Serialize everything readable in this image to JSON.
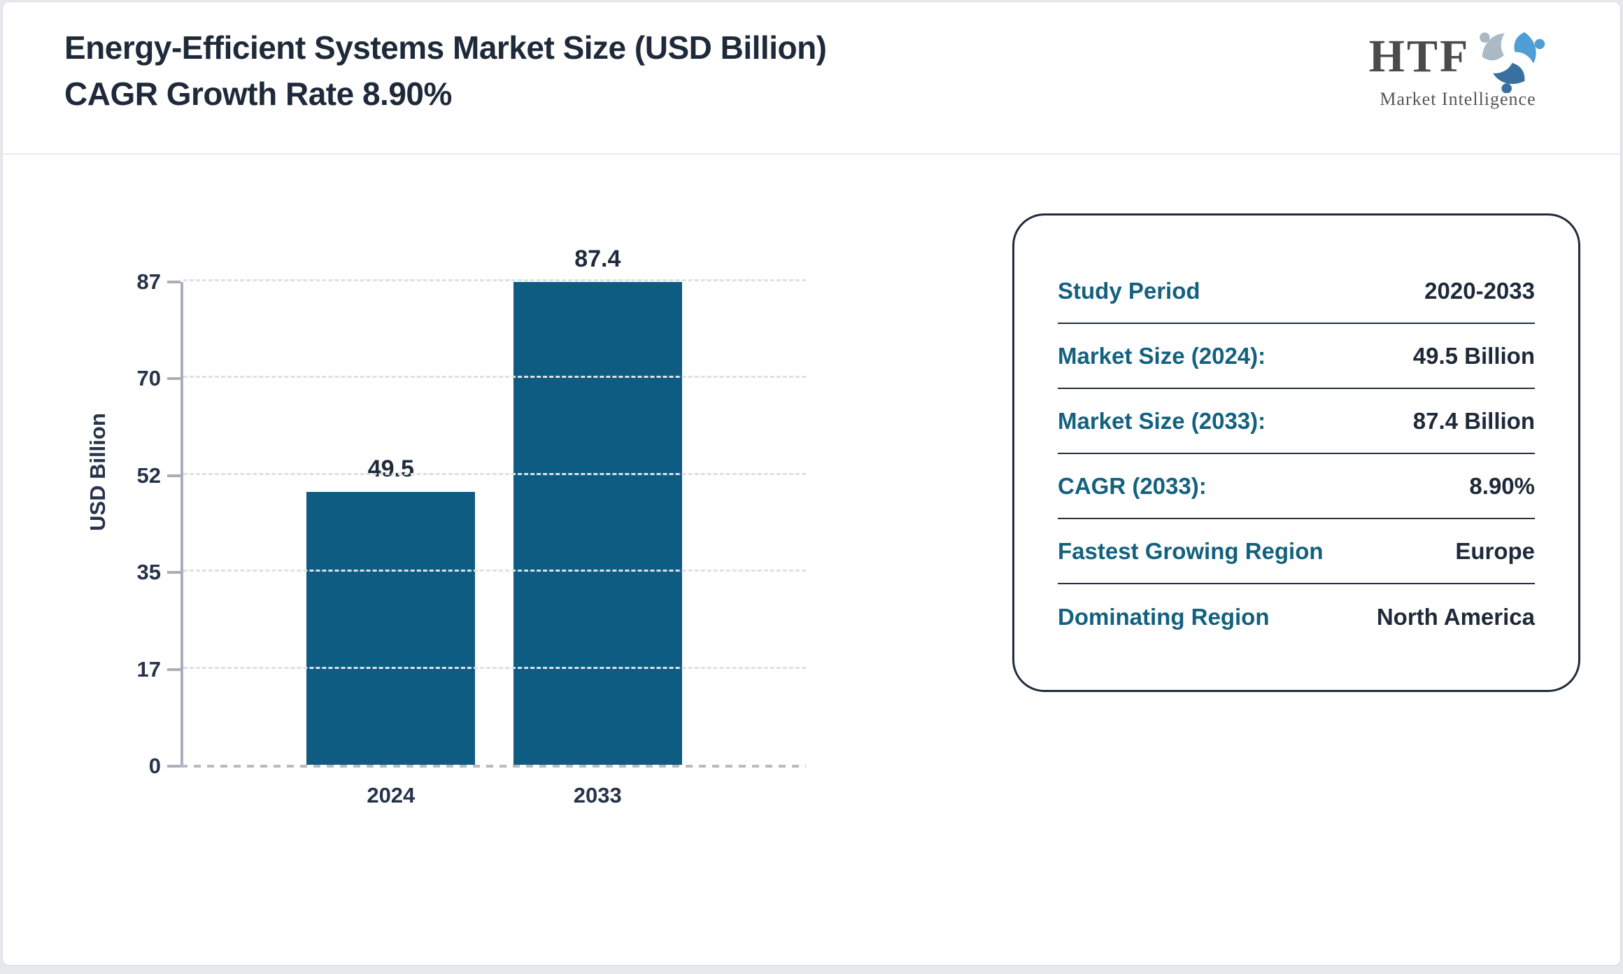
{
  "page": {
    "title": "Energy-Efficient Systems Market Size (USD Billion) CAGR Growth Rate 8.90%"
  },
  "logo": {
    "brand": "HTF",
    "tagline": "Market Intelligence",
    "mark_colors": {
      "top": "#4f9fd4",
      "bottom_right": "#38719f",
      "left": "#aab9c3"
    }
  },
  "chart_data": {
    "type": "bar",
    "title": "",
    "categories": [
      "2024",
      "2033"
    ],
    "values": [
      49.5,
      87.4
    ],
    "value_labels": [
      "49.5",
      "87.4"
    ],
    "xlabel": "",
    "ylabel": "USD Billion",
    "ylim": [
      0,
      87.4
    ],
    "yticks": [
      "0",
      "17",
      "35",
      "52",
      "70",
      "87"
    ],
    "grid": "horizontal dashed",
    "legend": "none",
    "bar_color": "#0f5c83",
    "tick_color": "#27334a"
  },
  "summary_panel": {
    "rows": [
      {
        "label": "Study Period",
        "value": "2020-2033"
      },
      {
        "label": "Market Size (2024):",
        "value": "49.5 Billion"
      },
      {
        "label": "Market Size (2033):",
        "value": "87.4 Billion"
      },
      {
        "label": "CAGR (2033):",
        "value": "8.90%"
      },
      {
        "label": "Fastest Growing Region",
        "value": "Europe"
      },
      {
        "label": "Dominating Region",
        "value": "North America"
      }
    ]
  }
}
